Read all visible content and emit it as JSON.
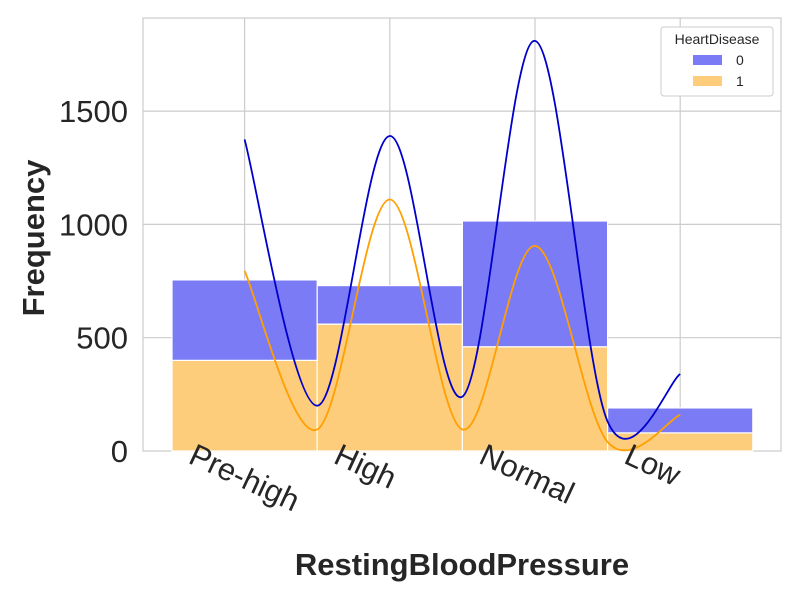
{
  "chart_data": {
    "type": "bar",
    "stacked": true,
    "categories": [
      "Pre-high",
      "High",
      "Normal",
      "Low"
    ],
    "series": [
      {
        "name": "0",
        "values": [
          355,
          170,
          555,
          110
        ],
        "color": "#7b7bf5",
        "kde_color": "#0000cc",
        "kde": [
          [
            0,
            1375
          ],
          [
            0.5,
            200
          ],
          [
            1,
            1390
          ],
          [
            1.5,
            240
          ],
          [
            2,
            1810
          ],
          [
            2.5,
            130
          ],
          [
            3,
            340
          ]
        ]
      },
      {
        "name": "1",
        "values": [
          400,
          560,
          460,
          80
        ],
        "color": "#fdcd7b",
        "kde_color": "#ff9f00",
        "kde": [
          [
            0,
            795
          ],
          [
            0.5,
            95
          ],
          [
            1,
            1110
          ],
          [
            1.5,
            95
          ],
          [
            2,
            905
          ],
          [
            2.5,
            40
          ],
          [
            3,
            160
          ]
        ]
      }
    ],
    "xlabel": "RestingBloodPressure",
    "ylabel": "Frequency",
    "ylim": [
      0,
      1900
    ],
    "yticks": [
      0,
      500,
      1000,
      1500
    ],
    "grid": true,
    "legend": {
      "title": "HeartDisease",
      "placement": "top-right"
    }
  }
}
